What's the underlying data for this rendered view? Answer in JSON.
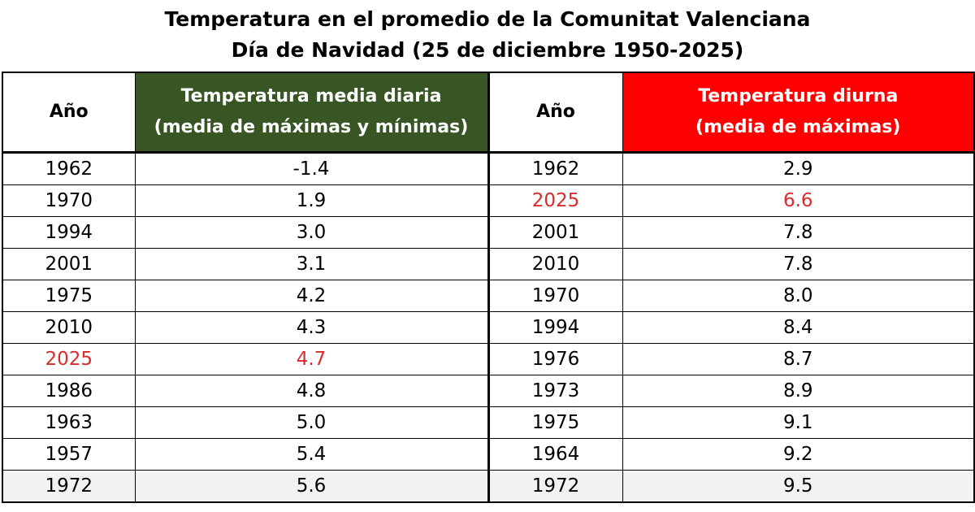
{
  "title": {
    "line1": "Temperatura en el promedio de la Comunitat Valenciana",
    "line2": "Día de Navidad (25 de diciembre 1950-2025)"
  },
  "headers": {
    "year_left": "Año",
    "mean_line1": "Temperatura media diaria",
    "mean_line2": "(media de máximas y mínimas)",
    "year_right": "Año",
    "day_line1": "Temperatura diurna",
    "day_line2": "(media de máximas)"
  },
  "colors": {
    "mean_header_bg": "#375623",
    "day_header_bg": "#ff0000",
    "highlight_text": "#d92b2b"
  },
  "highlight_year": "2025",
  "chart_data": {
    "type": "table",
    "title": "Temperatura en el promedio de la Comunitat Valenciana Día de Navidad (25 de diciembre 1950-2025)",
    "columns": [
      "Año",
      "Temperatura media diaria (media de máximas y mínimas)",
      "Año",
      "Temperatura diurna (media de máximas)"
    ],
    "rows": [
      {
        "year_mean": "1962",
        "mean": "-1.4",
        "year_day": "1962",
        "day": "2.9"
      },
      {
        "year_mean": "1970",
        "mean": "1.9",
        "year_day": "2025",
        "day": "6.6"
      },
      {
        "year_mean": "1994",
        "mean": "3.0",
        "year_day": "2001",
        "day": "7.8"
      },
      {
        "year_mean": "2001",
        "mean": "3.1",
        "year_day": "2010",
        "day": "7.8"
      },
      {
        "year_mean": "1975",
        "mean": "4.2",
        "year_day": "1970",
        "day": "8.0"
      },
      {
        "year_mean": "2010",
        "mean": "4.3",
        "year_day": "1994",
        "day": "8.4"
      },
      {
        "year_mean": "2025",
        "mean": "4.7",
        "year_day": "1976",
        "day": "8.7"
      },
      {
        "year_mean": "1986",
        "mean": "4.8",
        "year_day": "1973",
        "day": "8.9"
      },
      {
        "year_mean": "1963",
        "mean": "5.0",
        "year_day": "1975",
        "day": "9.1"
      },
      {
        "year_mean": "1957",
        "mean": "5.4",
        "year_day": "1964",
        "day": "9.2"
      },
      {
        "year_mean": "1972",
        "mean": "5.6",
        "year_day": "1972",
        "day": "9.5"
      }
    ]
  }
}
